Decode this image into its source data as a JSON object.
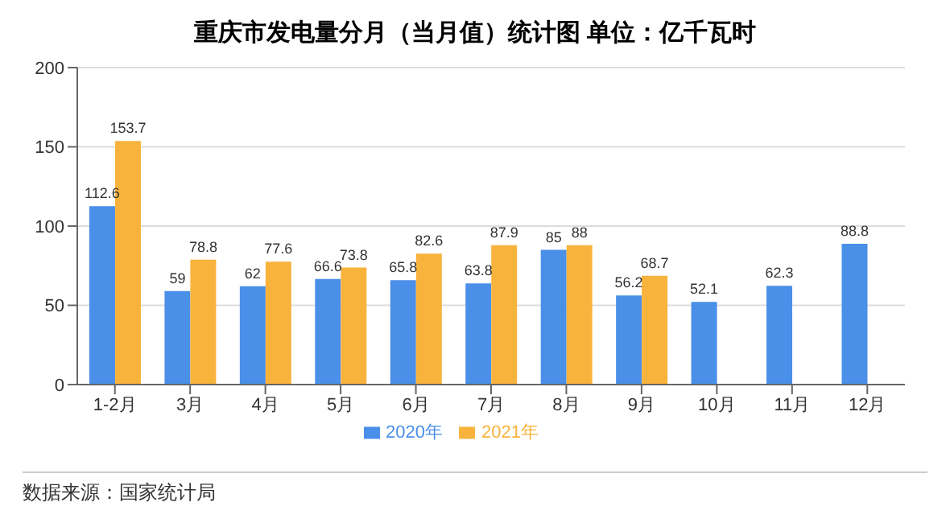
{
  "chart_data": {
    "type": "bar",
    "title": "重庆市发电量分月（当月值）统计图 单位：亿千瓦时",
    "categories": [
      "1-2月",
      "3月",
      "4月",
      "5月",
      "6月",
      "7月",
      "8月",
      "9月",
      "10月",
      "11月",
      "12月"
    ],
    "series": [
      {
        "name": "2020年",
        "color": "#4a8fe8",
        "values": [
          112.6,
          59,
          62,
          66.6,
          65.8,
          63.8,
          85,
          56.2,
          52.1,
          62.3,
          88.8
        ]
      },
      {
        "name": "2021年",
        "color": "#f8b33c",
        "values": [
          153.7,
          78.8,
          77.6,
          73.8,
          82.6,
          87.9,
          88,
          68.7,
          null,
          null,
          null
        ]
      }
    ],
    "ylim": [
      0,
      200
    ],
    "yticks": [
      0,
      50,
      100,
      150,
      200
    ],
    "grid": "y",
    "legend": "bottom",
    "data_labels": true,
    "annotations": [
      "数据来源：国家统计局"
    ]
  }
}
